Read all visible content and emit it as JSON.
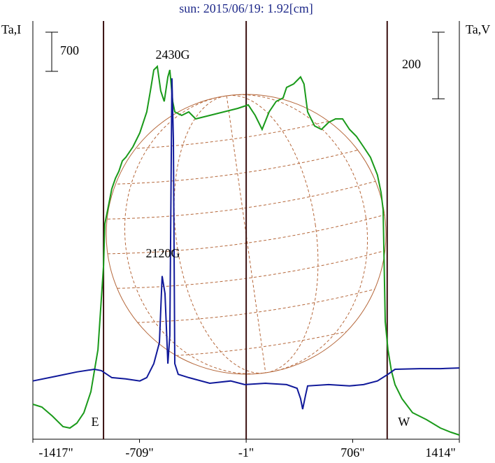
{
  "chart_data": {
    "type": "line",
    "title": "sun: 2015/06/19: 1.92[cm]",
    "ylabel": "Ta,I",
    "y2label": "Ta,V",
    "xlim": [
      -1417,
      1414
    ],
    "xticks": [
      {
        "value": -1417,
        "label": "-1417\""
      },
      {
        "value": -709,
        "label": "-709\""
      },
      {
        "value": -1,
        "label": "-1\""
      },
      {
        "value": 706,
        "label": "706\""
      },
      {
        "value": 1414,
        "label": "1414\""
      }
    ],
    "ylim": [
      0,
      7475
    ],
    "y2lim": [
      -185,
      1071
    ],
    "scale_bars": [
      {
        "axis": "y",
        "value": 700
      },
      {
        "axis": "y2",
        "value": 200
      }
    ],
    "vlines": [
      {
        "x": -948,
        "label": "E"
      },
      {
        "x": -1
      },
      {
        "x": 935,
        "label": "W"
      }
    ],
    "annotations": [
      "2430G",
      "2120G"
    ],
    "series": [
      {
        "color": "#1a9a1a",
        "axis": "y",
        "x": [
          -1417,
          -1357,
          -1287,
          -1217,
          -1171,
          -1125,
          -1078,
          -1032,
          -985,
          -948,
          -939,
          -916,
          -893,
          -869,
          -846,
          -823,
          -800,
          -753,
          -707,
          -661,
          -637,
          -614,
          -591,
          -568,
          -545,
          -521,
          -508,
          -489,
          -475,
          -429,
          -382,
          -336,
          -243,
          -150,
          -57,
          13,
          59,
          105,
          151,
          198,
          244,
          267,
          314,
          360,
          383,
          407,
          453,
          499,
          546,
          592,
          639,
          685,
          731,
          778,
          824,
          870,
          894,
          908,
          922,
          940,
          963,
          987,
          1033,
          1103,
          1196,
          1288,
          1358,
          1414
        ],
        "values": [
          625,
          575,
          413,
          225,
          200,
          288,
          475,
          850,
          1600,
          3100,
          3850,
          4163,
          4475,
          4663,
          4788,
          4975,
          5038,
          5225,
          5475,
          5850,
          6225,
          6600,
          6663,
          6225,
          6038,
          6475,
          6600,
          6038,
          5850,
          5788,
          5850,
          5725,
          5788,
          5850,
          5913,
          5975,
          5788,
          5538,
          5850,
          6038,
          6100,
          6288,
          6350,
          6475,
          6350,
          5850,
          5600,
          5538,
          5663,
          5725,
          5725,
          5538,
          5413,
          5225,
          5038,
          4725,
          4413,
          4100,
          2100,
          1600,
          1225,
          975,
          725,
          475,
          350,
          200,
          125,
          75
        ]
      },
      {
        "color": "#10199a",
        "axis": "y2",
        "x": [
          -1417,
          -1264,
          -1125,
          -1009,
          -962,
          -893,
          -800,
          -707,
          -661,
          -614,
          -577,
          -559,
          -540,
          -521,
          -508,
          -494,
          -484,
          -475,
          -452,
          -382,
          -243,
          -104,
          -11,
          128,
          267,
          337,
          360,
          374,
          393,
          407,
          546,
          685,
          778,
          870,
          940,
          987,
          1149,
          1288,
          1414
        ],
        "values": [
          -10,
          4,
          17,
          25,
          21,
          0,
          -4,
          -10,
          0,
          42,
          105,
          305,
          252,
          42,
          126,
          899,
          714,
          42,
          10,
          0,
          -17,
          -10,
          -21,
          -17,
          -21,
          -32,
          -63,
          -95,
          -53,
          -25,
          -21,
          -25,
          -21,
          -10,
          10,
          25,
          27,
          27,
          29
        ]
      }
    ]
  }
}
